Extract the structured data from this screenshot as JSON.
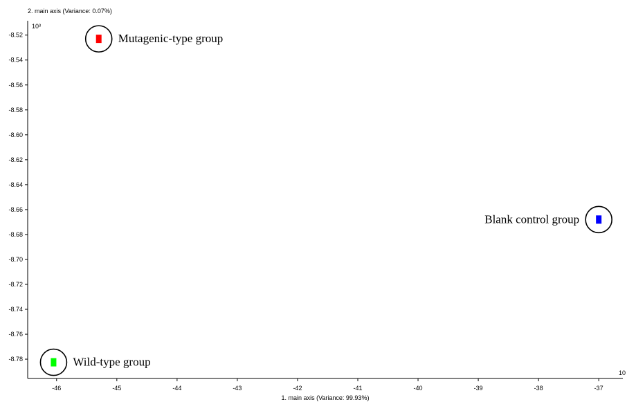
{
  "chart_data": {
    "type": "scatter",
    "xlabel": "1. main axis (Variance: 99.93%)",
    "ylabel": "2. main axis (Variance: 0.07%)",
    "x_exponent_label": "10",
    "y_exponent_label": "10³",
    "xlim": [
      -46.48,
      -36.6
    ],
    "ylim": [
      -8.7955,
      -8.5085
    ],
    "x_ticks": [
      -46,
      -45,
      -44,
      -43,
      -42,
      -41,
      -40,
      -39,
      -38,
      -37
    ],
    "y_ticks": [
      -8.52,
      -8.54,
      -8.56,
      -8.58,
      -8.6,
      -8.62,
      -8.64,
      -8.66,
      -8.68,
      -8.7,
      -8.72,
      -8.74,
      -8.76,
      -8.78
    ],
    "y_tick_labels": [
      "-8.52",
      "-8.54",
      "-8.56",
      "-8.58",
      "-8.60",
      "-8.62",
      "-8.64",
      "-8.66",
      "-8.68",
      "-8.70",
      "-8.72",
      "-8.74",
      "-8.76",
      "-8.78"
    ],
    "grid": false,
    "series": [
      {
        "name": "Mutagenic-type group",
        "color": "#ff0000",
        "x": -45.3,
        "y": -8.523,
        "label_side": "right"
      },
      {
        "name": "Blank control group",
        "color": "#0000ff",
        "x": -37.0,
        "y": -8.668,
        "label_side": "left"
      },
      {
        "name": "Wild-type group",
        "color": "#00ff00",
        "x": -46.05,
        "y": -8.7825,
        "label_side": "right"
      }
    ]
  }
}
